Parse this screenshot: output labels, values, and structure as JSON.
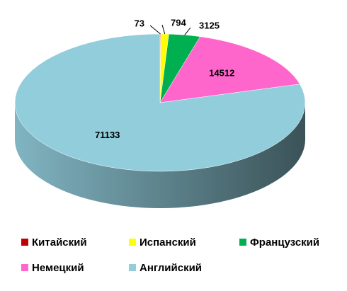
{
  "chart_data": {
    "type": "pie3d",
    "series": [
      {
        "name": "Китайский",
        "color": "#c00000",
        "values": [
          73
        ]
      },
      {
        "name": "Испанский",
        "color": "#ffff00",
        "values": [
          794
        ]
      },
      {
        "name": "Французский",
        "color": "#00b050",
        "values": [
          3125
        ]
      },
      {
        "name": "Немецкий",
        "color": "#ff66cc",
        "values": [
          14512
        ]
      },
      {
        "name": "Английский",
        "color": "#92cddc",
        "values": [
          71133
        ]
      }
    ],
    "legend": "bottom"
  }
}
